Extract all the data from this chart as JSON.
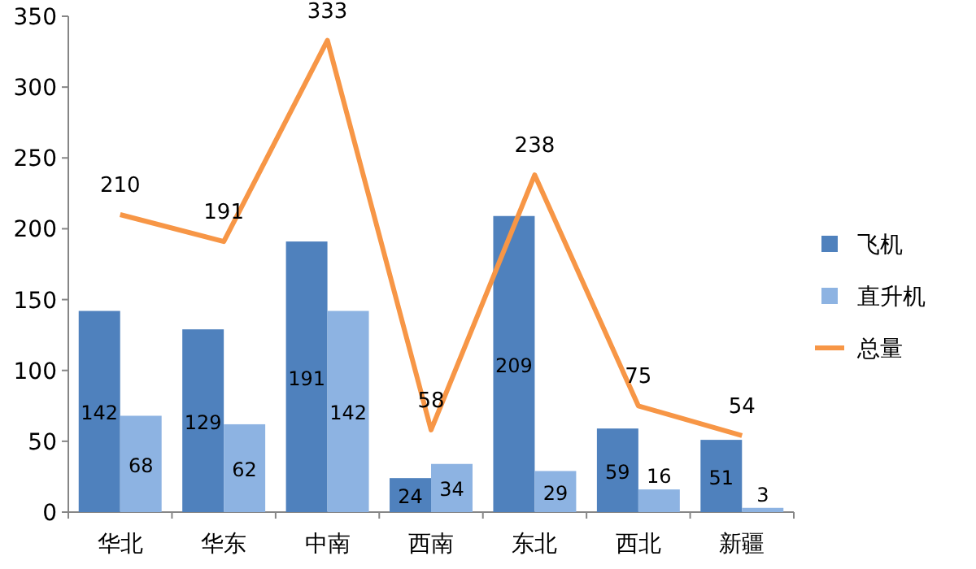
{
  "chart_data": {
    "type": "bar",
    "categories": [
      "华北",
      "华东",
      "中南",
      "西南",
      "东北",
      "西北",
      "新疆"
    ],
    "series": [
      {
        "name": "飞机",
        "color": "#4f81bd",
        "values": [
          142,
          129,
          191,
          24,
          209,
          59,
          51
        ]
      },
      {
        "name": "直升机",
        "color": "#8db3e2",
        "values": [
          68,
          62,
          142,
          34,
          29,
          16,
          3
        ]
      },
      {
        "name": "总量",
        "type": "line",
        "color": "#f79646",
        "values": [
          210,
          191,
          333,
          58,
          238,
          75,
          54
        ]
      }
    ],
    "ylim": [
      0,
      350
    ],
    "yticks": [
      0,
      50,
      100,
      150,
      200,
      250,
      300,
      350
    ],
    "data_labels": true,
    "legend": "right"
  }
}
